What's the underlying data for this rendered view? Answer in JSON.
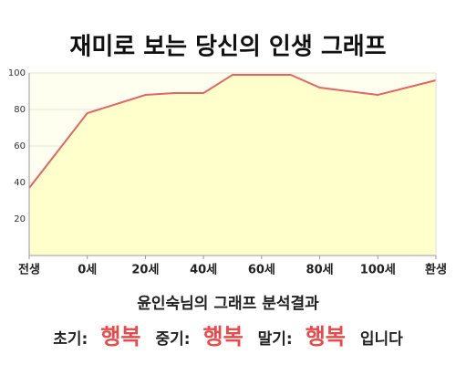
{
  "chart_data": {
    "type": "area",
    "title": "재미로 보는 당신의 인생 그래프",
    "x": [
      -20,
      0,
      20,
      30,
      40,
      50,
      70,
      80,
      100,
      120
    ],
    "values": [
      37,
      78,
      88,
      89,
      89,
      99,
      99,
      92,
      88,
      96
    ],
    "color": "#e06666",
    "fill": "#ffffcc",
    "xlim": [
      -20,
      120
    ],
    "xticks": [
      {
        "value": -20,
        "label": "전생"
      },
      {
        "value": 0,
        "label": "0세"
      },
      {
        "value": 20,
        "label": "20세"
      },
      {
        "value": 40,
        "label": "40세"
      },
      {
        "value": 60,
        "label": "60세"
      },
      {
        "value": 80,
        "label": "80세"
      },
      {
        "value": 100,
        "label": "100세"
      },
      {
        "value": 120,
        "label": "환생"
      }
    ],
    "ylim": [
      0,
      100
    ],
    "yticks": [
      20,
      40,
      60,
      80,
      100
    ],
    "grid": true
  },
  "analysis": {
    "title": "윤인숙님의 그래프 분석결과",
    "items": [
      {
        "label": "초기:",
        "value": "행복"
      },
      {
        "label": "중기:",
        "value": "행복"
      },
      {
        "label": "말기:",
        "value": "행복"
      }
    ],
    "suffix": "입니다"
  }
}
